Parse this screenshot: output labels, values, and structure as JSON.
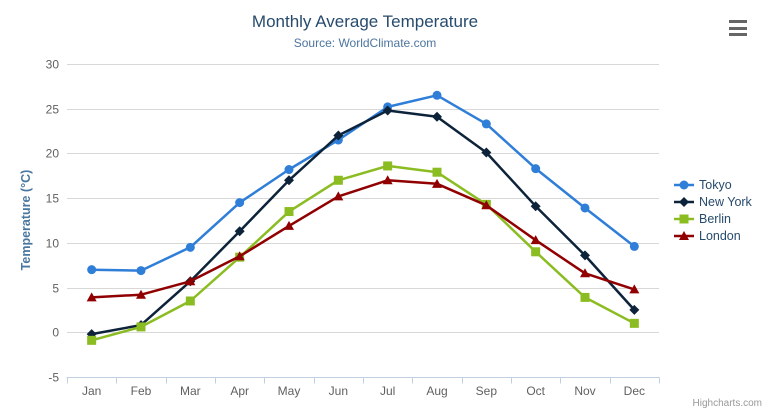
{
  "chart": {
    "title": "Monthly Average Temperature",
    "subtitle": "Source: WorldClimate.com",
    "yaxis_title": "Temperature (°C)",
    "credits": "Highcharts.com"
  },
  "icons": {
    "export_menu": "hamburger-icon"
  },
  "colors": {
    "grid": "#d8d8d8",
    "axis_line": "#c0d0e0",
    "axis_label": "#606060",
    "title_text": "#274b6d",
    "subtitle_text": "#4d759e",
    "legend_text": "#274b6d",
    "credits_text": "#999999",
    "menu_icon": "#666666"
  },
  "chart_data": {
    "type": "line",
    "title": "Monthly Average Temperature",
    "subtitle": "Source: WorldClimate.com",
    "xlabel": "",
    "ylabel": "Temperature (°C)",
    "ylim": [
      -5,
      30
    ],
    "yticks": [
      -5,
      0,
      5,
      10,
      15,
      20,
      25,
      30
    ],
    "grid": true,
    "legend_position": "right",
    "categories": [
      "Jan",
      "Feb",
      "Mar",
      "Apr",
      "May",
      "Jun",
      "Jul",
      "Aug",
      "Sep",
      "Oct",
      "Nov",
      "Dec"
    ],
    "series": [
      {
        "name": "Tokyo",
        "color": "#2f7ed8",
        "marker": "circle",
        "values": [
          7.0,
          6.9,
          9.5,
          14.5,
          18.2,
          21.5,
          25.2,
          26.5,
          23.3,
          18.3,
          13.9,
          9.6
        ]
      },
      {
        "name": "New York",
        "color": "#0d233a",
        "marker": "diamond",
        "values": [
          -0.2,
          0.8,
          5.7,
          11.3,
          17.0,
          22.0,
          24.8,
          24.1,
          20.1,
          14.1,
          8.6,
          2.5
        ]
      },
      {
        "name": "Berlin",
        "color": "#8bbc21",
        "marker": "square",
        "values": [
          -0.9,
          0.6,
          3.5,
          8.4,
          13.5,
          17.0,
          18.6,
          17.9,
          14.3,
          9.0,
          3.9,
          1.0
        ]
      },
      {
        "name": "London",
        "color": "#910000",
        "marker": "triangle",
        "values": [
          3.9,
          4.2,
          5.7,
          8.5,
          11.9,
          15.2,
          17.0,
          16.6,
          14.2,
          10.3,
          6.6,
          4.8
        ]
      }
    ]
  }
}
